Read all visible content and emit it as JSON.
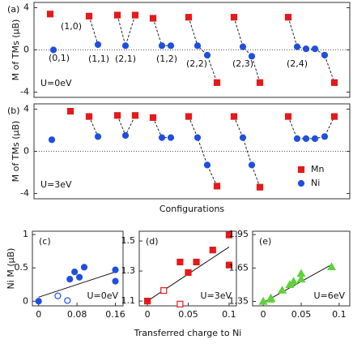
{
  "chart_data": [
    {
      "type": "moments",
      "panel": "(a)",
      "ylabel": "M of TMs (μB)",
      "note": "U=0eV",
      "ylim": [
        -4.5,
        4.5
      ],
      "yticks": [
        4,
        0,
        -4
      ],
      "groups": [
        {
          "label": "(1,0)",
          "sites": [
            {
              "Mn": 3.4
            }
          ]
        },
        {
          "label": "(0,1)",
          "sites": [
            {
              "Ni": 0
            }
          ]
        },
        {
          "label": "(1,1)",
          "sites": [
            {
              "Mn": 3.2
            },
            {
              "Ni": 0.5
            }
          ]
        },
        {
          "label": "(2,1)",
          "sites": [
            {
              "Mn": 3.3
            },
            {
              "Ni": 0.4
            },
            {
              "Mn": 3.3
            }
          ]
        },
        {
          "label": "(1,2)",
          "sites": [
            {
              "Mn": 3.0
            },
            {
              "Ni": 0.4
            },
            {
              "Ni": 0.4
            }
          ]
        },
        {
          "label": "(2,2)",
          "sites": [
            {
              "Mn": 3.1
            },
            {
              "Ni": 0.4
            },
            {
              "Ni": -0.5
            },
            {
              "Mn": -3.1
            }
          ]
        },
        {
          "label": "(2,3)",
          "sites": [
            {
              "Mn": 3.1
            },
            {
              "Ni": 0.3
            },
            {
              "Ni": -0.6
            },
            {
              "Mn": -3.1
            }
          ]
        },
        {
          "label": "(2,4)",
          "sites": [
            {
              "Mn": 3.1
            },
            {
              "Ni": 0.3
            },
            {
              "Ni": 0.1
            },
            {
              "Ni": 0.1
            },
            {
              "Ni": -0.5
            },
            {
              "Mn": -3.1
            }
          ]
        }
      ]
    },
    {
      "type": "moments",
      "panel": "(b)",
      "ylabel": "M of TMs (μB)",
      "note": "U=3eV",
      "xlabel": "Configurations",
      "ylim": [
        -4.5,
        4.5
      ],
      "yticks": [
        4,
        0,
        -4
      ],
      "legend": [
        {
          "name": "Mn",
          "color": "#e31a1c",
          "marker": "square"
        },
        {
          "name": "Ni",
          "color": "#1f4fe0",
          "marker": "circle"
        }
      ],
      "groups": [
        {
          "sites": [
            {
              "Ni": 1.1
            }
          ]
        },
        {
          "sites": [
            {
              "Mn": 3.8
            }
          ]
        },
        {
          "sites": [
            {
              "Mn": 3.3
            },
            {
              "Ni": 1.4
            }
          ]
        },
        {
          "sites": [
            {
              "Mn": 3.4
            },
            {
              "Ni": 1.5
            },
            {
              "Mn": 3.4
            }
          ]
        },
        {
          "sites": [
            {
              "Mn": 3.2
            },
            {
              "Ni": 1.3
            },
            {
              "Ni": 1.3
            }
          ]
        },
        {
          "sites": [
            {
              "Mn": 3.3
            },
            {
              "Ni": 1.3
            },
            {
              "Ni": -1.3
            },
            {
              "Mn": -3.3
            }
          ]
        },
        {
          "sites": [
            {
              "Mn": 3.3
            },
            {
              "Ni": 1.3
            },
            {
              "Ni": -1.3
            },
            {
              "Mn": -3.4
            }
          ]
        },
        {
          "sites": [
            {
              "Mn": 3.3
            },
            {
              "Ni": 1.2
            },
            {
              "Ni": 1.2
            },
            {
              "Ni": 1.2
            },
            {
              "Ni": 1.4
            },
            {
              "Mn": 3.3
            }
          ]
        }
      ]
    },
    {
      "type": "scatter",
      "panel": "(c)",
      "ylabel": "Ni M (μB)",
      "note": "U=0eV",
      "xlim": [
        -0.013,
        0.176
      ],
      "ylim": [
        -0.07,
        1.05
      ],
      "xticks": [
        0,
        0.08,
        0.16
      ],
      "yticks": [
        0,
        0.5,
        1
      ],
      "series": [
        {
          "color": "#1f4fe0",
          "marker": "circle",
          "filled": true,
          "x": [
            0,
            0.065,
            0.075,
            0.085,
            0.095,
            0.16,
            0.16
          ],
          "values": [
            0,
            0.33,
            0.44,
            0.36,
            0.51,
            0.47,
            0.3
          ]
        },
        {
          "color": "#1f4fe0",
          "marker": "circle",
          "filled": false,
          "x": [
            0.04,
            0.06
          ],
          "values": [
            0.08,
            0.01
          ]
        }
      ],
      "fit": {
        "x": [
          0,
          0.16
        ],
        "values": [
          0.06,
          0.44
        ]
      }
    },
    {
      "type": "scatter",
      "panel": "(d)",
      "note": "U=3eV",
      "xlabel": "Transferred charge to Ni",
      "xlim": [
        -0.01,
        0.109
      ],
      "ylim": [
        1.068,
        1.565
      ],
      "xticks": [
        0,
        0.05,
        0.1
      ],
      "yticks": [
        1.1,
        1.3,
        1.5
      ],
      "series": [
        {
          "color": "#e31a1c",
          "marker": "square",
          "filled": true,
          "x": [
            0,
            0.04,
            0.05,
            0.06,
            0.08,
            0.1,
            0.1
          ],
          "values": [
            1.1,
            1.36,
            1.29,
            1.36,
            1.44,
            1.54,
            1.34
          ]
        },
        {
          "color": "#e31a1c",
          "marker": "square",
          "filled": false,
          "x": [
            0.02,
            0.04
          ],
          "values": [
            1.17,
            1.08
          ]
        }
      ],
      "fit": {
        "x": [
          0,
          0.1
        ],
        "values": [
          1.1,
          1.46
        ]
      }
    },
    {
      "type": "scatter",
      "panel": "(e)",
      "note": "U=6eV",
      "xlim": [
        -0.014,
        0.114
      ],
      "ylim": [
        1.31,
        1.98
      ],
      "xticks": [
        0,
        0.05,
        0.1
      ],
      "yticks": [
        1.35,
        1.65,
        1.95
      ],
      "series": [
        {
          "color": "#5fd13a",
          "marker": "triangle",
          "filled": true,
          "x": [
            0,
            0.01,
            0.01,
            0.025,
            0.035,
            0.04,
            0.05,
            0.05,
            0.09
          ],
          "values": [
            1.35,
            1.37,
            1.38,
            1.45,
            1.5,
            1.53,
            1.55,
            1.6,
            1.66
          ]
        }
      ],
      "fit": {
        "x": [
          0,
          0.09
        ],
        "values": [
          1.34,
          1.68
        ]
      }
    }
  ]
}
